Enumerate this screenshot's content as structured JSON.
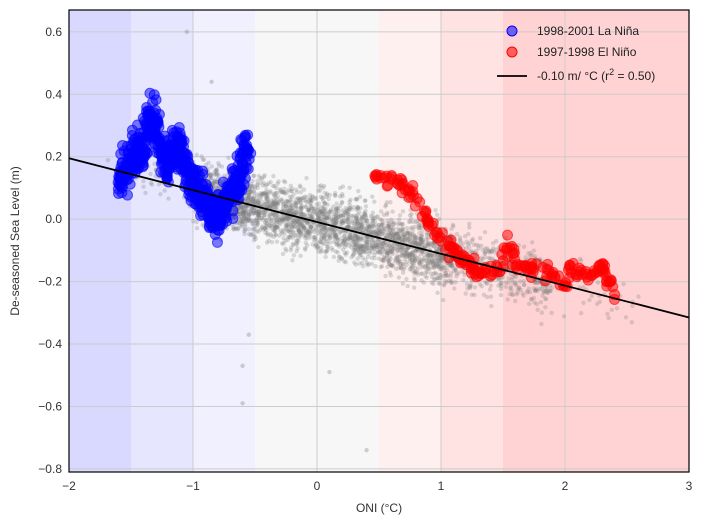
{
  "chart_data": {
    "type": "scatter",
    "title": "",
    "xlabel": "ONI (°C)",
    "ylabel": "De-seasoned Sea Level (m)",
    "xlim": [
      -2,
      3
    ],
    "ylim": [
      -0.81,
      0.67
    ],
    "xticks": [
      -2,
      -1,
      0,
      1,
      2,
      3
    ],
    "xtick_labels": [
      "−2",
      "−1",
      "0",
      "1",
      "2",
      "3"
    ],
    "yticks": [
      -0.8,
      -0.6,
      -0.4,
      -0.2,
      0.0,
      0.2,
      0.4,
      0.6
    ],
    "ytick_labels": [
      "−0.8",
      "−0.6",
      "−0.4",
      "−0.2",
      "0.0",
      "0.2",
      "0.4",
      "0.6"
    ],
    "grid": true,
    "legend_position": "top-right",
    "background_bands": [
      {
        "from": -2.0,
        "to": -1.5,
        "color": "#d9d9ff"
      },
      {
        "from": -1.5,
        "to": -1.0,
        "color": "#e6e6ff"
      },
      {
        "from": -1.0,
        "to": -0.5,
        "color": "#f0f0ff"
      },
      {
        "from": -0.5,
        "to": 0.5,
        "color": "#f7f7f7"
      },
      {
        "from": 0.5,
        "to": 1.0,
        "color": "#fff0f0"
      },
      {
        "from": 1.0,
        "to": 1.5,
        "color": "#ffe3e3"
      },
      {
        "from": 1.5,
        "to": 3.0,
        "color": "#ffd3d3"
      }
    ],
    "series": [
      {
        "name": "All observations",
        "color": "#7f7f7f",
        "style": "scatter",
        "in_legend": false,
        "x_range": [
          -1.7,
          2.6
        ],
        "n_points": 3200
      },
      {
        "name": "1998-2001 La Niña",
        "color": "#0000ff",
        "style": "scatter",
        "in_legend": true,
        "points": [
          [
            -1.6,
            0.13
          ],
          [
            -1.55,
            0.15
          ],
          [
            -1.5,
            0.18
          ],
          [
            -1.45,
            0.2
          ],
          [
            -1.4,
            0.22
          ],
          [
            -1.35,
            0.33
          ],
          [
            -1.3,
            0.3
          ],
          [
            -1.25,
            0.2
          ],
          [
            -1.2,
            0.18
          ],
          [
            -1.15,
            0.22
          ],
          [
            -1.1,
            0.25
          ],
          [
            -1.05,
            0.15
          ],
          [
            -1.0,
            0.12
          ],
          [
            -0.95,
            0.08
          ],
          [
            -0.9,
            0.05
          ],
          [
            -0.85,
            0.02
          ],
          [
            -0.8,
            0.0
          ],
          [
            -0.75,
            0.04
          ],
          [
            -0.7,
            0.08
          ],
          [
            -0.65,
            0.12
          ],
          [
            -0.6,
            0.18
          ],
          [
            -0.55,
            0.24
          ]
        ]
      },
      {
        "name": "1997-1998 El Niño",
        "color": "#ff0000",
        "style": "scatter",
        "in_legend": true,
        "points": [
          [
            0.47,
            0.14
          ],
          [
            0.55,
            0.13
          ],
          [
            0.65,
            0.12
          ],
          [
            0.72,
            0.1
          ],
          [
            0.8,
            0.06
          ],
          [
            0.88,
            0.0
          ],
          [
            0.95,
            -0.03
          ],
          [
            1.05,
            -0.08
          ],
          [
            1.1,
            -0.1
          ],
          [
            1.15,
            -0.13
          ],
          [
            1.2,
            -0.12
          ],
          [
            1.25,
            -0.15
          ],
          [
            1.3,
            -0.17
          ],
          [
            1.4,
            -0.18
          ],
          [
            1.5,
            -0.15
          ],
          [
            1.55,
            -0.05
          ],
          [
            1.6,
            -0.14
          ],
          [
            1.7,
            -0.16
          ],
          [
            1.8,
            -0.16
          ],
          [
            1.9,
            -0.17
          ],
          [
            2.0,
            -0.2
          ],
          [
            2.05,
            -0.15
          ],
          [
            2.15,
            -0.18
          ],
          [
            2.25,
            -0.17
          ],
          [
            2.3,
            -0.13
          ],
          [
            2.35,
            -0.2
          ],
          [
            2.4,
            -0.25
          ]
        ]
      },
      {
        "name": "-0.10 m/ °C (r² = 0.50)",
        "color": "#000000",
        "style": "line",
        "in_legend": true,
        "x": [
          -2,
          3
        ],
        "y": [
          0.195,
          -0.315
        ]
      }
    ],
    "annotations": []
  },
  "legend": {
    "items": [
      {
        "label": "1998-2001 La Niña",
        "color": "#0000ff",
        "kind": "marker"
      },
      {
        "label": "1997-1998 El Niño",
        "color": "#ff0000",
        "kind": "marker"
      },
      {
        "label_main": "-0.10 m/ °C (r",
        "label_sup": "2",
        "label_end": " = 0.50)",
        "color": "#000000",
        "kind": "line"
      }
    ]
  }
}
